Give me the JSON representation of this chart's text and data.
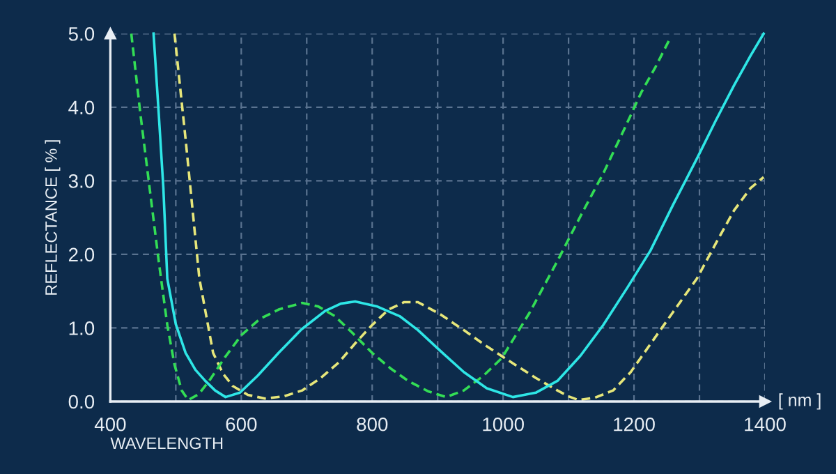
{
  "chart_data": {
    "type": "line",
    "ylabel": "REFLECTANCE [ % ]",
    "xlabel": "WAVELENGTH",
    "annotations": [
      "[ nm ]"
    ],
    "xlim": [
      400,
      1400
    ],
    "ylim": [
      0,
      5
    ],
    "xticks": [
      400,
      {
        "value": 500,
        "label": null
      },
      600,
      {
        "value": 700,
        "label": null
      },
      800,
      {
        "value": 900,
        "label": null
      },
      1000,
      {
        "value": 1100,
        "label": null
      },
      1200,
      {
        "value": 1300,
        "label": null
      },
      1400
    ],
    "yticks": [
      {
        "value": 0,
        "label": "0.0"
      },
      {
        "value": 1,
        "label": "1.0"
      },
      {
        "value": 2,
        "label": "2.0"
      },
      {
        "value": 3,
        "label": "3.0"
      },
      {
        "value": 4,
        "label": "4.0"
      },
      {
        "value": 5,
        "label": "5.0"
      }
    ],
    "grid": true,
    "legend": false,
    "series": [
      {
        "color": "#e6e67a",
        "line_style": "dashed",
        "x": [
          498,
          515,
          536,
          557,
          572,
          587,
          610,
          636,
          665,
          693,
          720,
          749,
          775,
          800,
          825,
          849,
          870,
          905,
          940,
          975,
          1013,
          1050,
          1083,
          1100,
          1115,
          1140,
          1168,
          1195,
          1225,
          1260,
          1296,
          1325,
          1353,
          1378,
          1398
        ],
        "values": [
          5.0,
          3.56,
          1.67,
          0.66,
          0.38,
          0.21,
          0.09,
          0.04,
          0.07,
          0.15,
          0.31,
          0.53,
          0.8,
          1.04,
          1.25,
          1.35,
          1.35,
          1.18,
          0.97,
          0.75,
          0.53,
          0.32,
          0.15,
          0.07,
          0.02,
          0.05,
          0.15,
          0.4,
          0.78,
          1.22,
          1.67,
          2.15,
          2.6,
          2.9,
          3.05
        ]
      },
      {
        "color": "#33dd55",
        "line_style": "dashed",
        "x": [
          432,
          446,
          460,
          474,
          487,
          498,
          509,
          519,
          535,
          551,
          575,
          600,
          628,
          657,
          693,
          718,
          743,
          770,
          800,
          828,
          855,
          885,
          913,
          940,
          970,
          998,
          1040,
          1083,
          1120,
          1153,
          1185,
          1211,
          1233,
          1253
        ],
        "values": [
          5.0,
          3.9,
          2.9,
          1.9,
          1.04,
          0.5,
          0.15,
          0.02,
          0.1,
          0.28,
          0.6,
          0.9,
          1.12,
          1.25,
          1.34,
          1.29,
          1.16,
          0.93,
          0.66,
          0.45,
          0.28,
          0.14,
          0.06,
          0.15,
          0.35,
          0.59,
          1.2,
          1.91,
          2.55,
          3.1,
          3.7,
          4.2,
          4.55,
          4.9
        ]
      },
      {
        "color": "#2ee6e6",
        "line_style": "solid",
        "x": [
          466,
          474,
          481,
          487,
          500,
          515,
          530,
          545,
          560,
          576,
          598,
          625,
          657,
          692,
          728,
          752,
          774,
          808,
          842,
          870,
          905,
          940,
          975,
          1015,
          1050,
          1083,
          1118,
          1153,
          1190,
          1225,
          1260,
          1296,
          1325,
          1353,
          1378,
          1398
        ],
        "values": [
          5.0,
          3.9,
          2.9,
          1.67,
          1.05,
          0.66,
          0.43,
          0.28,
          0.15,
          0.06,
          0.12,
          0.35,
          0.66,
          0.98,
          1.23,
          1.33,
          1.36,
          1.29,
          1.16,
          0.97,
          0.68,
          0.4,
          0.18,
          0.06,
          0.12,
          0.28,
          0.62,
          1.04,
          1.55,
          2.05,
          2.68,
          3.3,
          3.82,
          4.3,
          4.7,
          5.0
        ]
      }
    ]
  }
}
